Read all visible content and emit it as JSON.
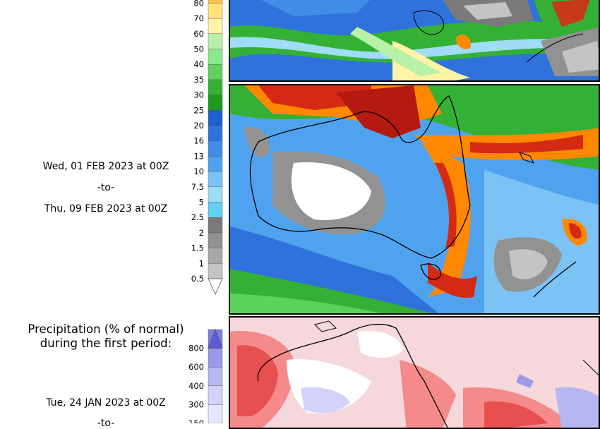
{
  "forecast_colorbar": {
    "labels": [
      "0.5",
      "1",
      "1.5",
      "2",
      "2.5",
      "5",
      "7.5",
      "10",
      "13",
      "16",
      "20",
      "25",
      "30",
      "35",
      "40",
      "50",
      "60",
      "70",
      "80"
    ],
    "colors": [
      "#c4c4c4",
      "#a8a8a8",
      "#929292",
      "#7a7a7a",
      "#62d0f0",
      "#9fdcf6",
      "#7cc3f5",
      "#4fa3ee",
      "#3f8de6",
      "#2f72dc",
      "#1c5fd0",
      "#1e9a1e",
      "#34b134",
      "#5cd25c",
      "#8ce88c",
      "#b8f0a8",
      "#fff3a6",
      "#ffe37a",
      "#ffc04a"
    ],
    "period_start": "Wed, 01 FEB 2023 at 00Z",
    "period_sep": "-to-",
    "period_end": "Thu, 09 FEB 2023 at 00Z"
  },
  "normal_section": {
    "title_line1": "Precipitation (% of normal)",
    "title_line2": "during the first period:",
    "labels": [
      "150",
      "300",
      "400",
      "600",
      "800"
    ],
    "colors": [
      "#e6e6ff",
      "#d2d2fa",
      "#b6b6f0",
      "#9a9ae8",
      "#7d7de0",
      "#5b5bd6"
    ],
    "period_start": "Tue, 24 JAN 2023 at 00Z",
    "period_sep": "-to-"
  },
  "maps": {
    "top_map": "precipitation-map-top",
    "middle_map": "precipitation-forecast-map",
    "bottom_map": "percent-of-normal-map"
  }
}
